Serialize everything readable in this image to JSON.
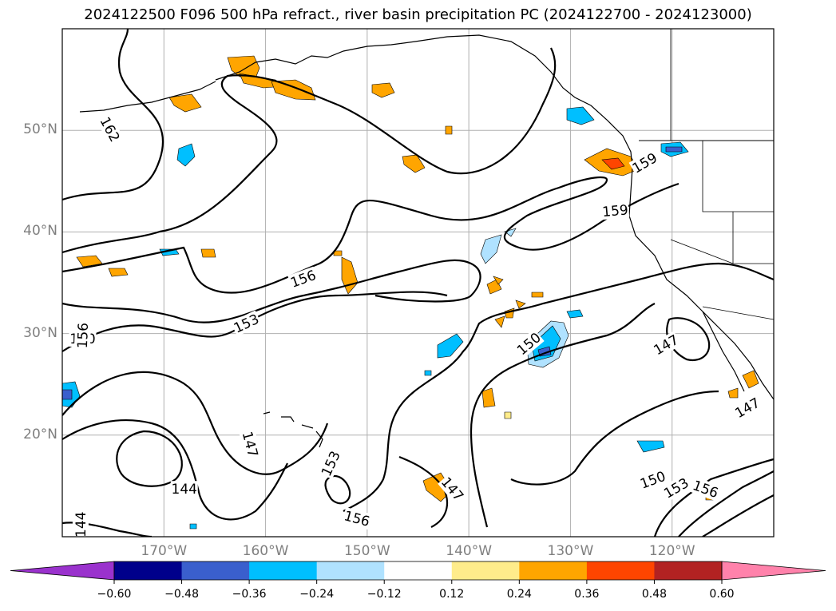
{
  "title": "2024122500 F096 500 hPa refract., river basin precipitation PC (2024122700 - 2024123000)",
  "map": {
    "lon_range": [
      -180,
      -110
    ],
    "lat_range": [
      10,
      60
    ],
    "lat_labels": [
      {
        "lat": 50,
        "text": "50°N"
      },
      {
        "lat": 40,
        "text": "40°N"
      },
      {
        "lat": 30,
        "text": "30°N"
      },
      {
        "lat": 20,
        "text": "20°N"
      }
    ],
    "lon_labels": [
      {
        "lon": -170,
        "text": "170°W"
      },
      {
        "lon": -160,
        "text": "160°W"
      },
      {
        "lon": -150,
        "text": "150°W"
      },
      {
        "lon": -140,
        "text": "140°W"
      },
      {
        "lon": -130,
        "text": "130°W"
      },
      {
        "lon": -120,
        "text": "120°W"
      }
    ],
    "contour_labels": [
      {
        "text": "162",
        "lon": -175.3,
        "lat": 50.1,
        "angle": 62
      },
      {
        "text": "159",
        "lon": -122.7,
        "lat": 46.8,
        "angle": -30
      },
      {
        "text": "159",
        "lon": -125.6,
        "lat": 42.1,
        "angle": -5
      },
      {
        "text": "156",
        "lon": -156.3,
        "lat": 35.4,
        "angle": -20
      },
      {
        "text": "153",
        "lon": -161.9,
        "lat": 31.0,
        "angle": -25
      },
      {
        "text": "150",
        "lon": -178.0,
        "lat": 29.5,
        "angle": 0
      },
      {
        "text": "156",
        "lon": -178.0,
        "lat": 29.8,
        "angle": -88
      },
      {
        "text": "150",
        "lon": -134.1,
        "lat": 29.0,
        "angle": -40
      },
      {
        "text": "147",
        "lon": -120.6,
        "lat": 28.9,
        "angle": -30
      },
      {
        "text": "147",
        "lon": -112.6,
        "lat": 22.7,
        "angle": -30
      },
      {
        "text": "147",
        "lon": -161.5,
        "lat": 19.1,
        "angle": 75
      },
      {
        "text": "144",
        "lon": -168.0,
        "lat": 14.7,
        "angle": 0
      },
      {
        "text": "144",
        "lon": -178.2,
        "lat": 11.2,
        "angle": -90
      },
      {
        "text": "153",
        "lon": -153.6,
        "lat": 17.2,
        "angle": -65
      },
      {
        "text": "156",
        "lon": -151.0,
        "lat": 11.8,
        "angle": 15
      },
      {
        "text": "147",
        "lon": -141.6,
        "lat": 14.7,
        "angle": 50
      },
      {
        "text": "150",
        "lon": -121.9,
        "lat": 15.6,
        "angle": -20
      },
      {
        "text": "153",
        "lon": -119.6,
        "lat": 14.8,
        "angle": -30
      },
      {
        "text": "156",
        "lon": -116.7,
        "lat": 14.7,
        "angle": 20
      }
    ]
  },
  "colorbar": {
    "levels": [
      "−0.60",
      "−0.48",
      "−0.36",
      "−0.24",
      "−0.12",
      "0.12",
      "0.24",
      "0.36",
      "0.48",
      "0.60"
    ],
    "colors": [
      "#9a32cd",
      "#00008b",
      "#3a5fcd",
      "#00bfff",
      "#b0e2ff",
      "#ffffff",
      "#ffec8b",
      "#ffa500",
      "#ff4500",
      "#b22222",
      "#ff82ab"
    ]
  }
}
